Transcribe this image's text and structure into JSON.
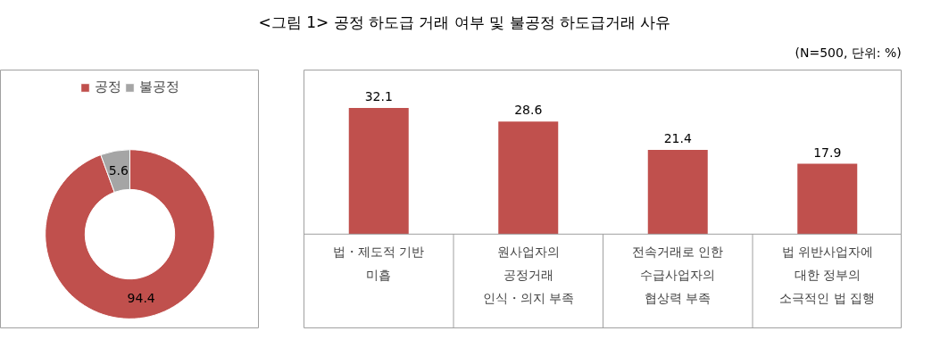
{
  "chart_data": [
    {
      "type": "other",
      "title": "<그림 1> 공정 하도급 거래 여부 및 불공정 하도급거래 사유",
      "annotations": [
        "(N=500, 단위: %)"
      ]
    },
    {
      "type": "donut",
      "categories": [
        "공정",
        "불공정"
      ],
      "values": [
        94.4,
        5.6
      ],
      "colors": [
        "#c0504d",
        "#a5a5a5"
      ],
      "data_labels": true,
      "legend": "top"
    },
    {
      "type": "bar",
      "categories": [
        "법・제도적 기반 미흡",
        "원사업자의 공정거래 인식・의지 부족",
        "전속거래로 인한 수급사업자의 협상력 부족",
        "법 위반사업자에 대한 정부의 소극적인 법 집행"
      ],
      "values": [
        32.1,
        28.6,
        21.4,
        17.9
      ],
      "color": "#c0504d",
      "data_labels": true
    }
  ]
}
